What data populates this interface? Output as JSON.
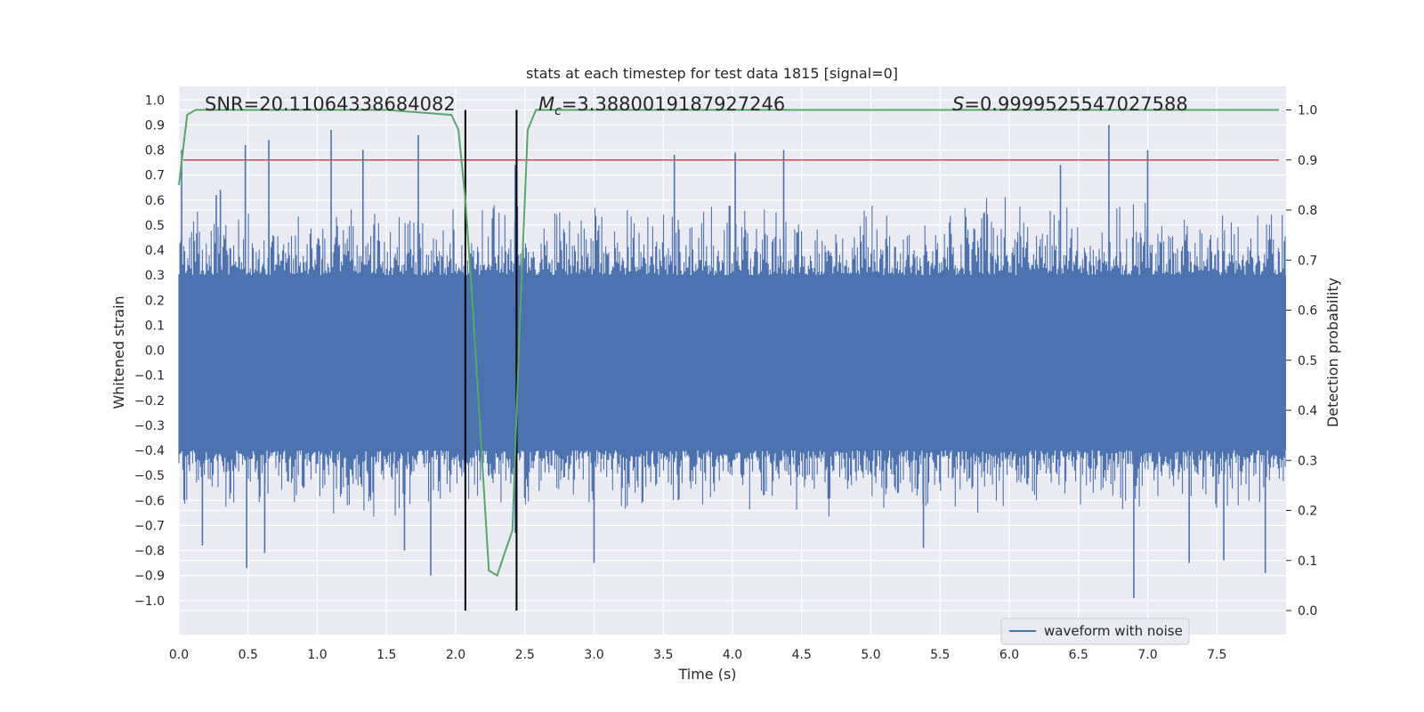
{
  "chart_data": {
    "type": "line",
    "title": "stats at each timestep for test data 1815 [signal=0]",
    "xlabel": "Time (s)",
    "ylabel": "Whitened strain",
    "y2label": "Detection probability",
    "xlim": [
      0.0,
      8.0
    ],
    "ylim": [
      -1.1,
      1.05
    ],
    "y2lim": [
      -0.05,
      1.04
    ],
    "xticks": [
      "0.0",
      "0.5",
      "1.0",
      "1.5",
      "2.0",
      "2.5",
      "3.0",
      "3.5",
      "4.0",
      "4.5",
      "5.0",
      "5.5",
      "6.0",
      "6.5",
      "7.0",
      "7.5"
    ],
    "yticks": [
      "1.0",
      "0.9",
      "0.8",
      "0.7",
      "0.6",
      "0.5",
      "0.4",
      "0.3",
      "0.2",
      "0.1",
      "0.0",
      "−0.1",
      "−0.2",
      "−0.3",
      "−0.4",
      "−0.5",
      "−0.6",
      "−0.7",
      "−0.8",
      "−0.9",
      "−1.0"
    ],
    "y2ticks": [
      "1.0",
      "0.9",
      "0.8",
      "0.7",
      "0.6",
      "0.5",
      "0.4",
      "0.3",
      "0.2",
      "0.1",
      "0.0"
    ],
    "annotations": {
      "snr": "SNR=20.11064338684082",
      "mc_symbol": "M",
      "mc_sub": "c",
      "mc_value": "=3.3880019187927246",
      "s_symbol": "S",
      "s_value": "=0.9999525547027588"
    },
    "legend": {
      "label": "waveform with noise",
      "location": "lower-right"
    },
    "series": [
      {
        "name": "waveform with noise",
        "axis": "left",
        "color": "#4c72b0",
        "envelope_top": 0.3,
        "envelope_bottom": -0.4,
        "spikes": [
          {
            "x": 0.02,
            "v": 0.8
          },
          {
            "x": 0.17,
            "v": -0.78
          },
          {
            "x": 0.27,
            "v": 0.62
          },
          {
            "x": 0.3,
            "v": 0.64
          },
          {
            "x": 0.48,
            "v": 0.82
          },
          {
            "x": 0.49,
            "v": -0.87
          },
          {
            "x": 0.62,
            "v": -0.81
          },
          {
            "x": 0.65,
            "v": 0.84
          },
          {
            "x": 1.1,
            "v": 0.88
          },
          {
            "x": 1.33,
            "v": 0.8
          },
          {
            "x": 1.73,
            "v": 0.86
          },
          {
            "x": 1.63,
            "v": -0.8
          },
          {
            "x": 1.82,
            "v": -0.9
          },
          {
            "x": 2.43,
            "v": 0.74
          },
          {
            "x": 2.43,
            "v": -0.73
          },
          {
            "x": 3.0,
            "v": -0.85
          },
          {
            "x": 3.58,
            "v": 0.78
          },
          {
            "x": 4.02,
            "v": 0.79
          },
          {
            "x": 4.37,
            "v": 0.8
          },
          {
            "x": 5.38,
            "v": -0.79
          },
          {
            "x": 6.37,
            "v": 0.74
          },
          {
            "x": 6.72,
            "v": 0.9
          },
          {
            "x": 6.9,
            "v": -0.99
          },
          {
            "x": 7.0,
            "v": 0.8
          },
          {
            "x": 7.3,
            "v": -0.85
          },
          {
            "x": 7.55,
            "v": -0.84
          },
          {
            "x": 7.85,
            "v": -0.89
          }
        ]
      },
      {
        "name": "detection probability",
        "axis": "right",
        "color": "#55a868",
        "x": [
          0.0,
          0.06,
          0.12,
          0.2,
          0.5,
          1.0,
          1.5,
          1.97,
          2.02,
          2.07,
          2.12,
          2.18,
          2.24,
          2.3,
          2.36,
          2.41,
          2.46,
          2.52,
          2.58,
          3.0,
          4.0,
          5.0,
          6.0,
          7.0,
          7.95
        ],
        "y": [
          0.85,
          0.99,
          1.0,
          1.0,
          1.0,
          1.0,
          1.0,
          0.99,
          0.96,
          0.82,
          0.62,
          0.35,
          0.08,
          0.07,
          0.12,
          0.16,
          0.55,
          0.96,
          1.0,
          1.0,
          1.0,
          1.0,
          1.0,
          1.0,
          1.0
        ]
      }
    ],
    "hlines": [
      {
        "axis": "right",
        "y": 0.9,
        "color": "#c44e52"
      }
    ],
    "vlines": [
      {
        "x": 2.07,
        "color": "#000000"
      },
      {
        "x": 2.44,
        "color": "#000000"
      }
    ],
    "grid": true,
    "background": "#eaeaf2"
  }
}
